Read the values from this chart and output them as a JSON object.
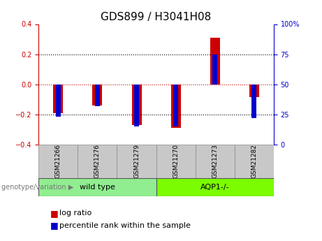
{
  "title": "GDS899 / H3041H08",
  "samples": [
    "GSM21266",
    "GSM21276",
    "GSM21279",
    "GSM21270",
    "GSM21273",
    "GSM21282"
  ],
  "log_ratios": [
    -0.19,
    -0.14,
    -0.27,
    -0.29,
    0.31,
    -0.085
  ],
  "percentile_ranks": [
    23,
    32,
    15,
    15,
    75,
    22
  ],
  "groups": {
    "wild type": [
      0,
      1,
      2
    ],
    "AQP1-/-": [
      3,
      4,
      5
    ]
  },
  "group_colors": {
    "wild type": "#90EE90",
    "AQP1-/-": "#7CFC00"
  },
  "red_bar_width": 0.25,
  "blue_bar_width": 0.12,
  "ylim_left": [
    -0.4,
    0.4
  ],
  "ylim_right": [
    0,
    100
  ],
  "yticks_left": [
    -0.4,
    -0.2,
    0,
    0.2,
    0.4
  ],
  "yticks_right": [
    0,
    25,
    50,
    75,
    100
  ],
  "red_color": "#CC0000",
  "blue_color": "#0000CC",
  "title_fontsize": 11,
  "tick_fontsize": 7,
  "label_fontsize": 8,
  "legend_fontsize": 8,
  "sample_box_color": "#C8C8C8"
}
